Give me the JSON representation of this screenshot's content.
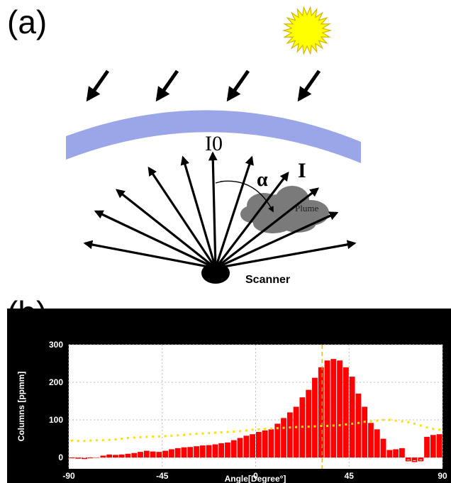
{
  "panel_a": {
    "label": "(a)",
    "i0_label": "I0",
    "i_label": "I",
    "alpha_label": "α",
    "plume_label": "Plume",
    "scanner_label": "Scanner",
    "colors": {
      "sky_band": "#9aa6e8",
      "sun_fill": "#ffff00",
      "sun_stroke": "#d9b300",
      "plume_fill": "#7a7a7a",
      "arrows": "#000000"
    }
  },
  "panel_b": {
    "label": "(b)"
  },
  "chart_data": {
    "type": "bar",
    "xlabel": "Angle[Degree°]",
    "ylabel": "Columns [ppmm]",
    "xlim": [
      -90,
      90
    ],
    "ylim": [
      -30,
      300
    ],
    "xticks": [
      "-90",
      "-45",
      "0",
      "45",
      "90"
    ],
    "yticks": [
      "0",
      "100",
      "200",
      "300"
    ],
    "grid": true,
    "background": "#000000",
    "plot_background": "#ffffff",
    "bar_color": "#ff0000",
    "dotted_series_color": "#ffe000",
    "marker_line_x": 32,
    "bars": {
      "x": [
        -88.5,
        -85.5,
        -82.5,
        -79.5,
        -76.5,
        -73.5,
        -70.5,
        -67.5,
        -64.5,
        -61.5,
        -58.5,
        -55.5,
        -52.5,
        -49.5,
        -46.5,
        -43.5,
        -40.5,
        -37.5,
        -34.5,
        -31.5,
        -28.5,
        -25.5,
        -22.5,
        -19.5,
        -16.5,
        -13.5,
        -10.5,
        -7.5,
        -4.5,
        -1.5,
        1.5,
        4.5,
        7.5,
        10.5,
        13.5,
        16.5,
        19.5,
        22.5,
        25.5,
        28.5,
        31.5,
        34.5,
        37.5,
        40.5,
        43.5,
        46.5,
        49.5,
        52.5,
        55.5,
        58.5,
        61.5,
        64.5,
        67.5,
        70.5,
        73.5,
        76.5,
        79.5,
        82.5,
        85.5,
        88.5
      ],
      "values": [
        -2,
        -3,
        -4,
        -2,
        0,
        5,
        8,
        7,
        8,
        10,
        12,
        15,
        18,
        16,
        15,
        18,
        22,
        25,
        27,
        28,
        30,
        32,
        33,
        35,
        38,
        40,
        46,
        52,
        58,
        62,
        68,
        72,
        75,
        90,
        105,
        120,
        135,
        160,
        180,
        212,
        240,
        258,
        262,
        258,
        240,
        215,
        170,
        135,
        92,
        75,
        50,
        20,
        22,
        25,
        -10,
        -12,
        -10,
        55,
        60,
        62
      ]
    },
    "dotted_series": {
      "x": [
        -88.5,
        -85.5,
        -82.5,
        -79.5,
        -76.5,
        -73.5,
        -70.5,
        -67.5,
        -64.5,
        -61.5,
        -58.5,
        -55.5,
        -52.5,
        -49.5,
        -46.5,
        -43.5,
        -40.5,
        -37.5,
        -34.5,
        -31.5,
        -28.5,
        -25.5,
        -22.5,
        -19.5,
        -16.5,
        -13.5,
        -10.5,
        -7.5,
        -4.5,
        -1.5,
        1.5,
        4.5,
        7.5,
        10.5,
        13.5,
        16.5,
        19.5,
        22.5,
        25.5,
        28.5,
        31.5,
        34.5,
        37.5,
        40.5,
        43.5,
        46.5,
        49.5,
        52.5,
        55.5,
        58.5,
        61.5,
        64.5,
        67.5,
        70.5,
        73.5,
        76.5,
        79.5,
        82.5,
        85.5,
        88.5
      ],
      "values": [
        45,
        44,
        44,
        45,
        46,
        46,
        47,
        48,
        50,
        52,
        53,
        54,
        55,
        56,
        56,
        57,
        58,
        59,
        60,
        62,
        63,
        64,
        65,
        66,
        67,
        68,
        69,
        70,
        72,
        74,
        75,
        76,
        77,
        78,
        79,
        80,
        81,
        82,
        82,
        83,
        84,
        84,
        85,
        86,
        88,
        90,
        92,
        95,
        96,
        98,
        100,
        100,
        98,
        96,
        94,
        90,
        85,
        80,
        76,
        74
      ]
    }
  }
}
